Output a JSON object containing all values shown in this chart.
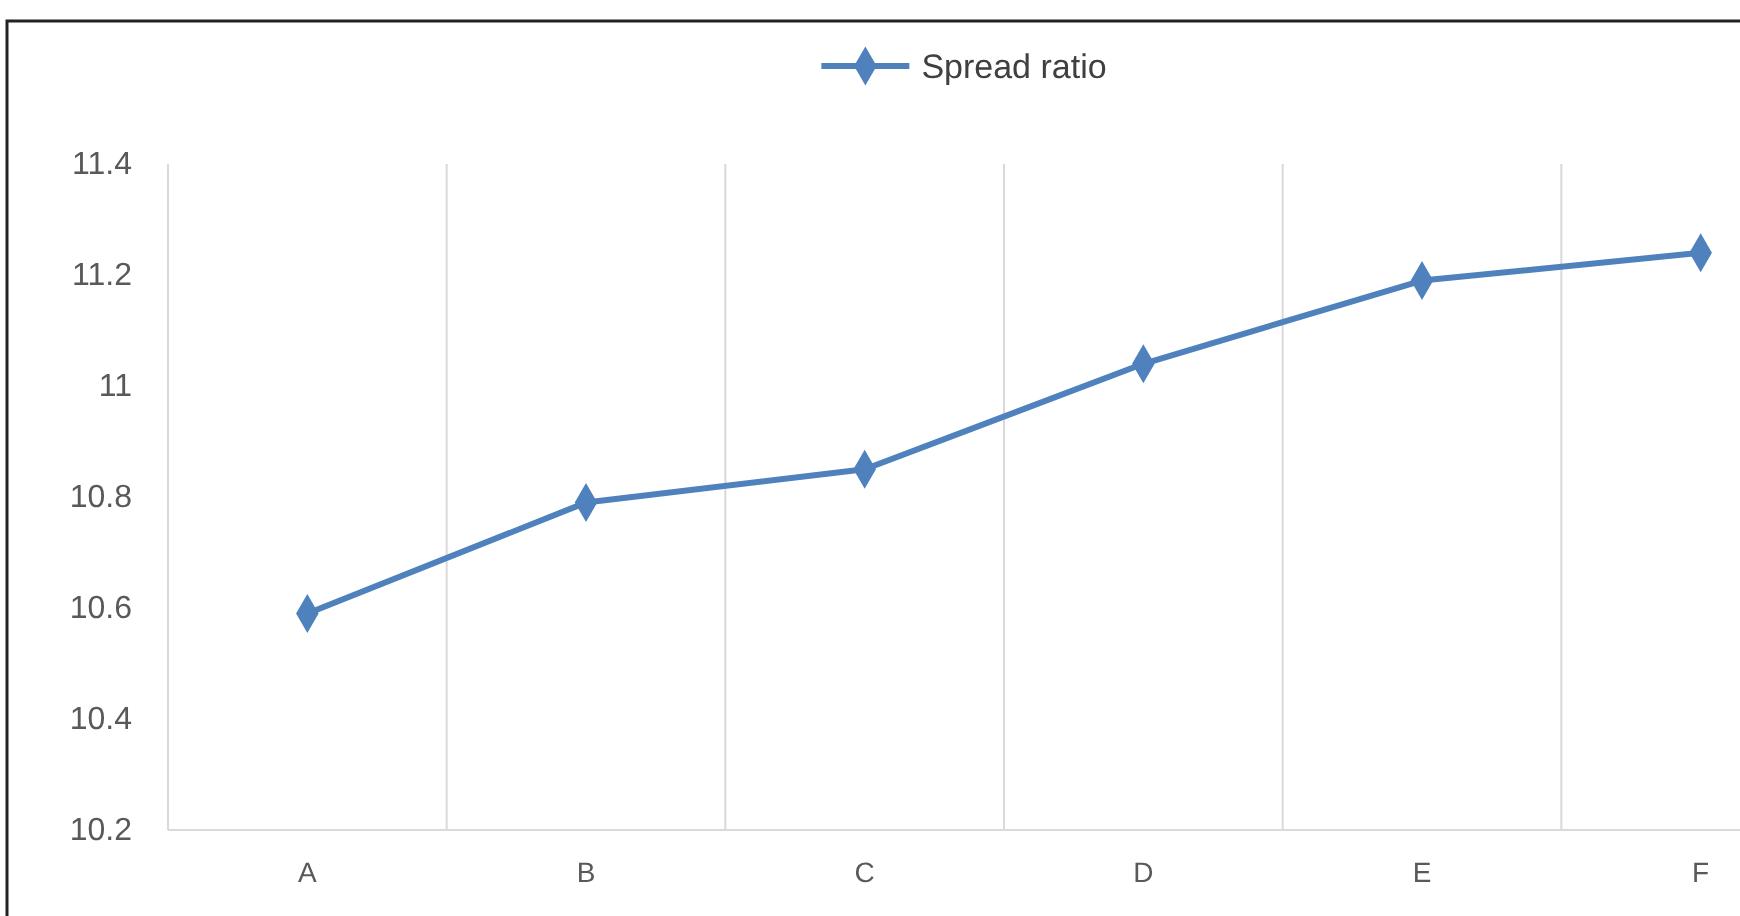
{
  "chart_data": {
    "type": "line",
    "categories": [
      "A",
      "B",
      "C",
      "D",
      "E",
      "F"
    ],
    "series": [
      {
        "name": "Spread ratio",
        "color": "#4f81bd",
        "values": [
          10.59,
          10.79,
          10.85,
          11.04,
          11.19,
          11.24
        ]
      }
    ],
    "ylim": [
      10.2,
      11.4
    ],
    "yticks": [
      10.2,
      10.4,
      10.6,
      10.8,
      {
        "value": 11,
        "label": "11"
      },
      11.2,
      11.4
    ],
    "grid": "x",
    "legend": "top",
    "marker": "diamond",
    "line_style": "solid"
  }
}
